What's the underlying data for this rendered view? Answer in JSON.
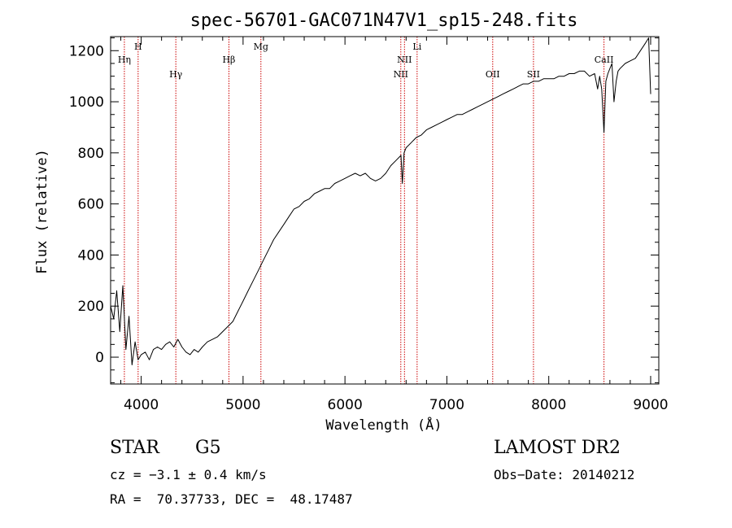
{
  "chart_data": {
    "type": "line",
    "title": "spec-56701-GAC071N47V1_sp15-248.fits",
    "xlabel": "Wavelength (Å)",
    "ylabel": "Flux (relative)",
    "xlim": [
      3700,
      9080
    ],
    "ylim": [
      -105,
      1255
    ],
    "xticks": [
      4000,
      5000,
      6000,
      7000,
      8000,
      9000
    ],
    "yticks": [
      0,
      200,
      400,
      600,
      800,
      1000,
      1200
    ],
    "grid": false,
    "line_color": "#000000",
    "marker_color": "#cc0000",
    "series": [
      {
        "x": [
          3700,
          3730,
          3760,
          3790,
          3820,
          3850,
          3880,
          3910,
          3940,
          3970,
          4000,
          4040,
          4080,
          4120,
          4160,
          4200,
          4240,
          4280,
          4320,
          4360,
          4400,
          4440,
          4480,
          4520,
          4560,
          4600,
          4650,
          4700,
          4750,
          4800,
          4850,
          4900,
          4950,
          5000,
          5050,
          5100,
          5150,
          5200,
          5250,
          5300,
          5350,
          5400,
          5450,
          5500,
          5550,
          5600,
          5650,
          5700,
          5750,
          5800,
          5850,
          5900,
          5950,
          6000,
          6050,
          6100,
          6150,
          6200,
          6250,
          6300,
          6350,
          6400,
          6450,
          6500,
          6550,
          6563,
          6580,
          6600,
          6650,
          6700,
          6750,
          6800,
          6850,
          6900,
          6950,
          7000,
          7050,
          7100,
          7150,
          7200,
          7250,
          7300,
          7350,
          7400,
          7450,
          7500,
          7550,
          7600,
          7650,
          7700,
          7750,
          7800,
          7850,
          7900,
          7950,
          8000,
          8050,
          8100,
          8150,
          8200,
          8250,
          8300,
          8350,
          8400,
          8450,
          8480,
          8500,
          8520,
          8542,
          8560,
          8580,
          8600,
          8620,
          8640,
          8662,
          8680,
          8700,
          8750,
          8800,
          8850,
          8900,
          8950,
          8980,
          9000
        ],
        "y": [
          200,
          150,
          260,
          100,
          280,
          30,
          160,
          -30,
          60,
          -10,
          10,
          20,
          -10,
          30,
          40,
          30,
          50,
          60,
          40,
          70,
          40,
          20,
          10,
          30,
          20,
          40,
          60,
          70,
          80,
          100,
          120,
          140,
          180,
          220,
          260,
          300,
          340,
          380,
          420,
          460,
          490,
          520,
          550,
          580,
          590,
          610,
          620,
          640,
          650,
          660,
          660,
          680,
          690,
          700,
          710,
          720,
          710,
          720,
          700,
          690,
          700,
          720,
          750,
          770,
          790,
          680,
          800,
          820,
          840,
          860,
          870,
          890,
          900,
          910,
          920,
          930,
          940,
          950,
          950,
          960,
          970,
          980,
          990,
          1000,
          1010,
          1020,
          1030,
          1040,
          1050,
          1060,
          1070,
          1070,
          1080,
          1080,
          1090,
          1090,
          1090,
          1100,
          1100,
          1110,
          1110,
          1120,
          1120,
          1100,
          1110,
          1050,
          1100,
          1050,
          880,
          1080,
          1110,
          1130,
          1150,
          1000,
          1080,
          1120,
          1130,
          1150,
          1160,
          1170,
          1200,
          1230,
          1250,
          1030
        ]
      }
    ],
    "line_markers": [
      {
        "label": "Hη",
        "x": 3835,
        "label_level": 2
      },
      {
        "label": "H",
        "x": 3970,
        "label_level": 1
      },
      {
        "label": "Hγ",
        "x": 4340,
        "label_level": 3
      },
      {
        "label": "Hβ",
        "x": 4861,
        "label_level": 2
      },
      {
        "label": "Mg",
        "x": 5175,
        "label_level": 1
      },
      {
        "label": "NII",
        "x": 6548,
        "label_level": 3
      },
      {
        "label": "NII",
        "x": 6584,
        "label_level": 2
      },
      {
        "label": "Li",
        "x": 6708,
        "label_level": 1
      },
      {
        "label": "OII",
        "x": 7450,
        "label_level": 3
      },
      {
        "label": "SII",
        "x": 7850,
        "label_level": 3
      },
      {
        "label": "CaII",
        "x": 8542,
        "label_level": 2
      }
    ]
  },
  "info": {
    "object_class": "STAR",
    "subclass": "G5",
    "survey": "LAMOST DR2",
    "cz": "cz = −3.1 ± 0.4 km/s",
    "obs_date": "Obs−Date: 20140212",
    "coords": "RA =  70.37733, DEC =  48.17487"
  }
}
